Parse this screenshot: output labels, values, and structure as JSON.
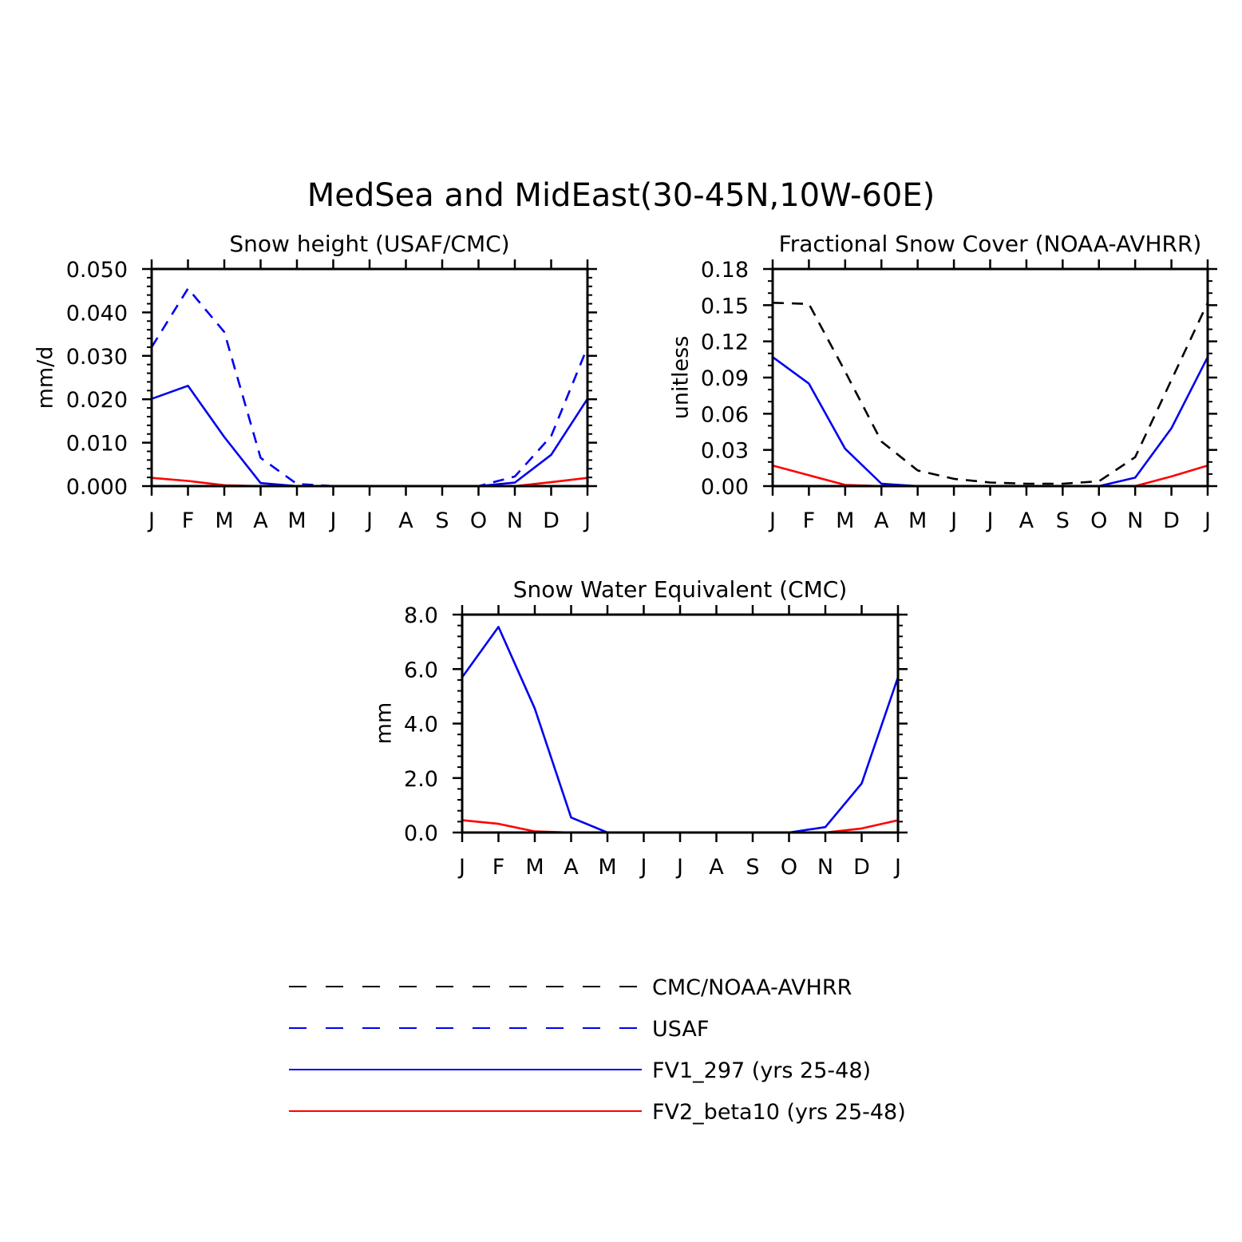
{
  "title": "MedSea and MidEast(30-45N,10W-60E)",
  "months": [
    "J",
    "F",
    "M",
    "A",
    "M",
    "J",
    "J",
    "A",
    "S",
    "O",
    "N",
    "D",
    "J"
  ],
  "colors": {
    "cmc": "#000000",
    "usaf": "#0000ee",
    "fv1": "#0000ee",
    "fv2": "#ff0000"
  },
  "legend": [
    {
      "key": "cmc",
      "label": "CMC/NOAA-AVHRR",
      "dashed": true
    },
    {
      "key": "usaf",
      "label": "USAF",
      "dashed": true
    },
    {
      "key": "fv1",
      "label": "FV1_297 (yrs 25-48)",
      "dashed": false
    },
    {
      "key": "fv2",
      "label": "FV2_beta10 (yrs 25-48)",
      "dashed": false
    }
  ],
  "chart_data": [
    {
      "type": "line",
      "title": "Snow height (USAF/CMC)",
      "ylabel": "mm/d",
      "xlabel": "",
      "ylim": [
        0,
        0.05
      ],
      "yticks": [
        "0.000",
        "0.010",
        "0.020",
        "0.030",
        "0.040",
        "0.050"
      ],
      "categories": [
        "J",
        "F",
        "M",
        "A",
        "M",
        "J",
        "J",
        "A",
        "S",
        "O",
        "N",
        "D",
        "J"
      ],
      "series": [
        {
          "name": "USAF",
          "key": "usaf",
          "dashed": true,
          "values": [
            0.032,
            0.0455,
            0.0355,
            0.0065,
            0.0005,
            0.0,
            0.0,
            0.0,
            0.0,
            0.0,
            0.0022,
            0.0115,
            0.032
          ]
        },
        {
          "name": "FV1_297 (yrs 25-48)",
          "key": "fv1",
          "dashed": false,
          "values": [
            0.0201,
            0.0231,
            0.0113,
            0.0007,
            0.0,
            0.0,
            0.0,
            0.0,
            0.0,
            0.0,
            0.0008,
            0.0072,
            0.0201
          ]
        },
        {
          "name": "FV2_beta10 (yrs 25-48)",
          "key": "fv2",
          "dashed": false,
          "values": [
            0.0019,
            0.0012,
            0.0002,
            0.0,
            0.0,
            0.0,
            0.0,
            0.0,
            0.0,
            0.0,
            0.0,
            0.0009,
            0.0019
          ]
        }
      ]
    },
    {
      "type": "line",
      "title": "Fractional Snow Cover (NOAA-AVHRR)",
      "ylabel": "unitless",
      "xlabel": "",
      "ylim": [
        0,
        0.18
      ],
      "yticks": [
        "0.00",
        "0.03",
        "0.06",
        "0.09",
        "0.12",
        "0.15",
        "0.18"
      ],
      "categories": [
        "J",
        "F",
        "M",
        "A",
        "M",
        "J",
        "J",
        "A",
        "S",
        "O",
        "N",
        "D",
        "J"
      ],
      "series": [
        {
          "name": "CMC/NOAA-AVHRR",
          "key": "cmc",
          "dashed": true,
          "values": [
            0.152,
            0.151,
            0.095,
            0.037,
            0.013,
            0.006,
            0.003,
            0.002,
            0.002,
            0.004,
            0.024,
            0.088,
            0.152
          ]
        },
        {
          "name": "FV1_297 (yrs 25-48)",
          "key": "fv1",
          "dashed": false,
          "values": [
            0.107,
            0.085,
            0.031,
            0.002,
            0.0,
            0.0,
            0.0,
            0.0,
            0.0,
            0.0,
            0.007,
            0.048,
            0.107
          ]
        },
        {
          "name": "FV2_beta10 (yrs 25-48)",
          "key": "fv2",
          "dashed": false,
          "values": [
            0.017,
            0.009,
            0.001,
            0.0,
            0.0,
            0.0,
            0.0,
            0.0,
            0.0,
            0.0,
            0.0,
            0.008,
            0.017
          ]
        }
      ]
    },
    {
      "type": "line",
      "title": "Snow Water Equivalent (CMC)",
      "ylabel": "mm",
      "xlabel": "",
      "ylim": [
        0,
        8
      ],
      "yticks": [
        "0.0",
        "2.0",
        "4.0",
        "6.0",
        "8.0"
      ],
      "categories": [
        "J",
        "F",
        "M",
        "A",
        "M",
        "J",
        "J",
        "A",
        "S",
        "O",
        "N",
        "D",
        "J"
      ],
      "series": [
        {
          "name": "FV1_297 (yrs 25-48)",
          "key": "fv1",
          "dashed": false,
          "values": [
            5.7,
            7.55,
            4.55,
            0.55,
            0.0,
            0.0,
            0.0,
            0.0,
            0.0,
            0.0,
            0.2,
            1.8,
            5.7
          ]
        },
        {
          "name": "FV2_beta10 (yrs 25-48)",
          "key": "fv2",
          "dashed": false,
          "values": [
            0.45,
            0.32,
            0.04,
            0.0,
            0.0,
            0.0,
            0.0,
            0.0,
            0.0,
            0.0,
            0.0,
            0.15,
            0.45
          ]
        }
      ]
    }
  ]
}
